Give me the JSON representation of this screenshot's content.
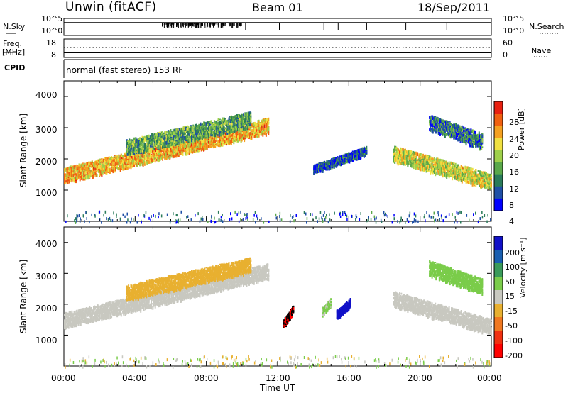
{
  "header": {
    "station": "Unwin (fitACF)",
    "beam": "Beam 01",
    "date": "18/Sep/2011"
  },
  "strip_labels": {
    "nsky": "N.Sky",
    "nsearch": "N.Search",
    "freq_top": "Freq.",
    "freq_unit": "[MHz]",
    "nave": "Nave",
    "cpid": "CPID",
    "noise_ticks_left": [
      "10^5",
      "10^0"
    ],
    "noise_ticks_right": [
      "10^5",
      "10^0"
    ],
    "freq_ticks_left": [
      "18",
      "8"
    ],
    "freq_ticks_right": [
      "60",
      "0"
    ]
  },
  "mode_text": "normal (fast stereo) 153 RF",
  "axes": {
    "xlabel": "Time UT",
    "x_ticks": [
      "00:00",
      "04:00",
      "08:00",
      "12:00",
      "16:00",
      "20:00",
      "00:00"
    ],
    "ylabel": "Slant Range [km]",
    "y_ticks": [
      "4000",
      "3000",
      "2000",
      "1000"
    ]
  },
  "colorbars": {
    "power": {
      "label": "Power [dB]",
      "ticks": [
        "28",
        "24",
        "20",
        "16",
        "12",
        "8",
        "4"
      ],
      "colors": [
        "#0000ff",
        "#1f4fa6",
        "#2a7b5a",
        "#5aa84a",
        "#9fd04a",
        "#f0e040",
        "#f4a020",
        "#f06010",
        "#e82010"
      ]
    },
    "velocity": {
      "label": "Velocity [m s⁻¹]",
      "ticks": [
        "200",
        "100",
        "50",
        "15",
        "-15",
        "-50",
        "-100",
        "-200"
      ],
      "colors": [
        "#1010c8",
        "#1a5fb0",
        "#3a9a5a",
        "#7acc4a",
        "#c8c8c0",
        "#e8b030",
        "#f07820",
        "#f03010",
        "#ff0000"
      ]
    }
  },
  "chart_data": [
    {
      "type": "heatmap",
      "title": "",
      "quantity": "Power [dB]",
      "xlabel": "Time UT",
      "ylabel": "Slant Range [km]",
      "xlim": [
        "00:00",
        "24:00"
      ],
      "ylim": [
        0,
        4500
      ],
      "colorbar_range": [
        0,
        32
      ],
      "features": [
        {
          "name": "main band",
          "t_start": 0,
          "t_end": 11.5,
          "range_start": 1500,
          "range_end": 3100,
          "power": 22
        },
        {
          "name": "upper arc",
          "t_start": 3.5,
          "t_end": 10.5,
          "range_start": 2400,
          "range_end": 3300,
          "power": 12
        },
        {
          "name": "afternoon patch",
          "t_start": 14,
          "t_end": 17,
          "range_start": 1700,
          "range_end": 2300,
          "power": 6
        },
        {
          "name": "evening band",
          "t_start": 18.5,
          "t_end": 24,
          "range_start": 2200,
          "range_end": 1300,
          "power": 18
        },
        {
          "name": "evening arc",
          "t_start": 20.5,
          "t_end": 23.5,
          "range_start": 3200,
          "range_end": 2600,
          "power": 8
        }
      ]
    },
    {
      "type": "heatmap",
      "title": "",
      "quantity": "Velocity [m s-1]",
      "xlabel": "Time UT",
      "ylabel": "Slant Range [km]",
      "xlim": [
        "00:00",
        "24:00"
      ],
      "ylim": [
        0,
        4500
      ],
      "colorbar_range": [
        -200,
        200
      ],
      "features": [
        {
          "name": "ground scatter band",
          "t_start": 0,
          "t_end": 11.5,
          "range_start": 1500,
          "range_end": 3100,
          "velocity": 0
        },
        {
          "name": "upper arc",
          "t_start": 3.5,
          "t_end": 10.5,
          "range_start": 2400,
          "range_end": 3300,
          "velocity": -50
        },
        {
          "name": "red patch",
          "t_start": 12.3,
          "t_end": 12.9,
          "range_start": 1400,
          "range_end": 1900,
          "velocity": -200
        },
        {
          "name": "blue patch",
          "t_start": 15.3,
          "t_end": 16.1,
          "range_start": 1700,
          "range_end": 2100,
          "velocity": 200
        },
        {
          "name": "green patch",
          "t_start": 14.5,
          "t_end": 15.0,
          "range_start": 1800,
          "range_end": 2100,
          "velocity": 30
        },
        {
          "name": "evening band",
          "t_start": 18.5,
          "t_end": 24,
          "range_start": 2200,
          "range_end": 1300,
          "velocity": 0
        },
        {
          "name": "evening arc",
          "t_start": 20.5,
          "t_end": 23.5,
          "range_start": 3200,
          "range_end": 2600,
          "velocity": 40
        }
      ]
    }
  ]
}
